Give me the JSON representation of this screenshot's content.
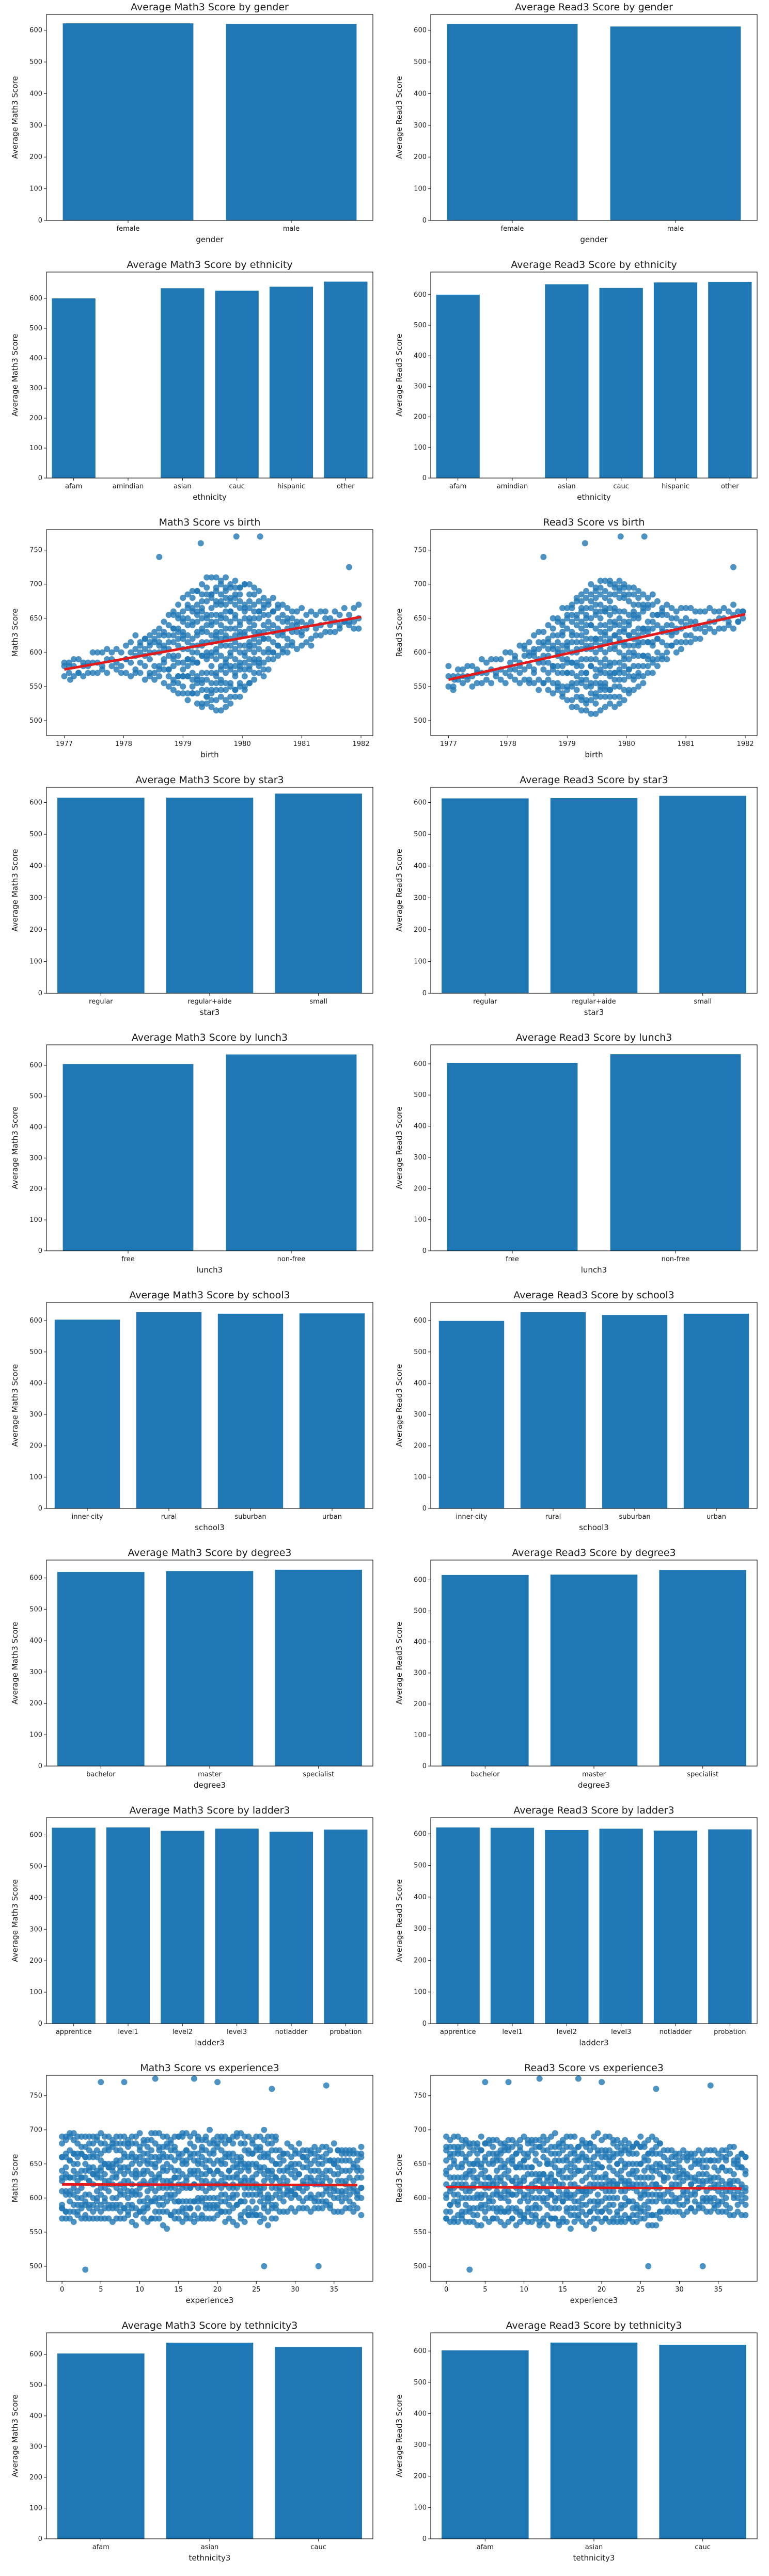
{
  "colors": {
    "bar": "#1f77b4",
    "point": "#1f77b4",
    "fit_line": "#e31a1c",
    "axes": "#1a1a1a"
  },
  "chart_data": [
    {
      "type": "bar",
      "title": "Average Math3 Score by gender",
      "xlabel": "gender",
      "ylabel": "Average Math3 Score",
      "categories": [
        "female",
        "male"
      ],
      "values": [
        622,
        620
      ],
      "ylim": [
        0,
        650
      ],
      "yticks": [
        0,
        100,
        200,
        300,
        400,
        500,
        600
      ],
      "grid": false
    },
    {
      "type": "bar",
      "title": "Average Read3 Score by gender",
      "xlabel": "gender",
      "ylabel": "Average Read3 Score",
      "categories": [
        "female",
        "male"
      ],
      "values": [
        620,
        612
      ],
      "ylim": [
        0,
        650
      ],
      "yticks": [
        0,
        100,
        200,
        300,
        400,
        500,
        600
      ],
      "grid": false
    },
    {
      "type": "bar",
      "title": "Average Math3 Score by ethnicity",
      "xlabel": "ethnicity",
      "ylabel": "Average Math3 Score",
      "categories": [
        "afam",
        "amindian",
        "asian",
        "cauc",
        "hispanic",
        "other"
      ],
      "values": [
        600,
        null,
        634,
        626,
        639,
        656
      ],
      "ylim": [
        0,
        688
      ],
      "yticks": [
        0,
        100,
        200,
        300,
        400,
        500,
        600
      ],
      "grid": false
    },
    {
      "type": "bar",
      "title": "Average Read3 Score by ethnicity",
      "xlabel": "ethnicity",
      "ylabel": "Average Read3 Score",
      "categories": [
        "afam",
        "amindian",
        "asian",
        "cauc",
        "hispanic",
        "other"
      ],
      "values": [
        600,
        null,
        634,
        622,
        640,
        642
      ],
      "ylim": [
        0,
        674
      ],
      "yticks": [
        0,
        100,
        200,
        300,
        400,
        500,
        600
      ],
      "grid": false
    },
    {
      "type": "scatter",
      "title": "Math3 Score vs birth",
      "xlabel": "birth",
      "ylabel": "Math3 Score",
      "xlim": [
        1976.7,
        1982.2
      ],
      "ylim": [
        478,
        780
      ],
      "xticks": [
        1977,
        1978,
        1979,
        1980,
        1981,
        1982
      ],
      "yticks": [
        500,
        550,
        600,
        650,
        700,
        750
      ],
      "regression": {
        "x": [
          1977.0,
          1982.0
        ],
        "y": [
          575,
          652
        ]
      },
      "grid": false
    },
    {
      "type": "scatter",
      "title": "Read3 Score vs birth",
      "xlabel": "birth",
      "ylabel": "Read3 Score",
      "xlim": [
        1976.7,
        1982.2
      ],
      "ylim": [
        478,
        780
      ],
      "xticks": [
        1977,
        1978,
        1979,
        1980,
        1981,
        1982
      ],
      "yticks": [
        500,
        550,
        600,
        650,
        700,
        750
      ],
      "regression": {
        "x": [
          1977.0,
          1982.0
        ],
        "y": [
          560,
          656
        ]
      },
      "grid": false
    },
    {
      "type": "bar",
      "title": "Average Math3 Score by star3",
      "xlabel": "star3",
      "ylabel": "Average Math3 Score",
      "categories": [
        "regular",
        "regular+aide",
        "small"
      ],
      "values": [
        615,
        615,
        628
      ],
      "ylim": [
        0,
        648
      ],
      "yticks": [
        0,
        100,
        200,
        300,
        400,
        500,
        600
      ],
      "grid": false
    },
    {
      "type": "bar",
      "title": "Average Read3 Score by star3",
      "xlabel": "star3",
      "ylabel": "Average Read3 Score",
      "categories": [
        "regular",
        "regular+aide",
        "small"
      ],
      "values": [
        613,
        614,
        621
      ],
      "ylim": [
        0,
        648
      ],
      "yticks": [
        0,
        100,
        200,
        300,
        400,
        500,
        600
      ],
      "grid": false
    },
    {
      "type": "bar",
      "title": "Average Math3 Score by lunch3",
      "xlabel": "lunch3",
      "ylabel": "Average Math3 Score",
      "categories": [
        "free",
        "non-free"
      ],
      "values": [
        604,
        635
      ],
      "ylim": [
        0,
        666
      ],
      "yticks": [
        0,
        100,
        200,
        300,
        400,
        500,
        600
      ],
      "grid": false
    },
    {
      "type": "bar",
      "title": "Average Read3 Score by lunch3",
      "xlabel": "lunch3",
      "ylabel": "Average Read3 Score",
      "categories": [
        "free",
        "non-free"
      ],
      "values": [
        603,
        631
      ],
      "ylim": [
        0,
        661
      ],
      "yticks": [
        0,
        100,
        200,
        300,
        400,
        500,
        600
      ],
      "grid": false
    },
    {
      "type": "bar",
      "title": "Average Math3 Score by school3",
      "xlabel": "school3",
      "ylabel": "Average Math3 Score",
      "categories": [
        "inner-city",
        "rural",
        "suburban",
        "urban"
      ],
      "values": [
        603,
        627,
        622,
        623
      ],
      "ylim": [
        0,
        658
      ],
      "yticks": [
        0,
        100,
        200,
        300,
        400,
        500,
        600
      ],
      "grid": false
    },
    {
      "type": "bar",
      "title": "Average Read3 Score by school3",
      "xlabel": "school3",
      "ylabel": "Average Read3 Score",
      "categories": [
        "inner-city",
        "rural",
        "suburban",
        "urban"
      ],
      "values": [
        599,
        627,
        618,
        622
      ],
      "ylim": [
        0,
        658
      ],
      "yticks": [
        0,
        100,
        200,
        300,
        400,
        500,
        600
      ],
      "grid": false
    },
    {
      "type": "bar",
      "title": "Average Math3 Score by degree3",
      "xlabel": "degree3",
      "ylabel": "Average Math3 Score",
      "categories": [
        "bachelor",
        "master",
        "specialist"
      ],
      "values": [
        619,
        622,
        626
      ],
      "ylim": [
        0,
        657
      ],
      "yticks": [
        0,
        100,
        200,
        300,
        400,
        500,
        600
      ],
      "grid": false
    },
    {
      "type": "bar",
      "title": "Average Read3 Score by degree3",
      "xlabel": "degree3",
      "ylabel": "Average Read3 Score",
      "categories": [
        "bachelor",
        "master",
        "specialist"
      ],
      "values": [
        616,
        617,
        632
      ],
      "ylim": [
        0,
        664
      ],
      "yticks": [
        0,
        100,
        200,
        300,
        400,
        500,
        600
      ],
      "grid": false
    },
    {
      "type": "bar",
      "title": "Average Math3 Score by ladder3",
      "xlabel": "ladder3",
      "ylabel": "Average Math3 Score",
      "categories": [
        "apprentice",
        "level1",
        "level2",
        "level3",
        "notladder",
        "probation"
      ],
      "values": [
        623,
        624,
        613,
        620,
        610,
        617
      ],
      "ylim": [
        0,
        655
      ],
      "yticks": [
        0,
        100,
        200,
        300,
        400,
        500,
        600
      ],
      "grid": false
    },
    {
      "type": "bar",
      "title": "Average Read3 Score by ladder3",
      "xlabel": "ladder3",
      "ylabel": "Average Read3 Score",
      "categories": [
        "apprentice",
        "level1",
        "level2",
        "level3",
        "notladder",
        "probation"
      ],
      "values": [
        620,
        619,
        612,
        616,
        610,
        614
      ],
      "ylim": [
        0,
        651
      ],
      "yticks": [
        0,
        100,
        200,
        300,
        400,
        500,
        600
      ],
      "grid": false
    },
    {
      "type": "scatter",
      "title": "Math3 Score vs experience3",
      "xlabel": "experience3",
      "ylabel": "Math3 Score",
      "xlim": [
        -2,
        40
      ],
      "ylim": [
        478,
        780
      ],
      "xticks": [
        0,
        5,
        10,
        15,
        20,
        25,
        30,
        35
      ],
      "yticks": [
        500,
        550,
        600,
        650,
        700,
        750
      ],
      "regression": {
        "x": [
          0,
          38
        ],
        "y": [
          620,
          619
        ]
      },
      "grid": false
    },
    {
      "type": "scatter",
      "title": "Read3 Score vs experience3",
      "xlabel": "experience3",
      "ylabel": "Read3 Score",
      "xlim": [
        -2,
        40
      ],
      "ylim": [
        478,
        780
      ],
      "xticks": [
        0,
        5,
        10,
        15,
        20,
        25,
        30,
        35
      ],
      "yticks": [
        500,
        550,
        600,
        650,
        700,
        750
      ],
      "regression": {
        "x": [
          0,
          38
        ],
        "y": [
          616,
          614
        ]
      },
      "grid": false
    },
    {
      "type": "bar",
      "title": "Average Math3 Score by tethnicity3",
      "xlabel": "tethnicity3",
      "ylabel": "Average Math3 Score",
      "categories": [
        "afam",
        "asian",
        "cauc"
      ],
      "values": [
        603,
        638,
        624
      ],
      "ylim": [
        0,
        670
      ],
      "yticks": [
        0,
        100,
        200,
        300,
        400,
        500,
        600
      ],
      "grid": false
    },
    {
      "type": "bar",
      "title": "Average Read3 Score by tethnicity3",
      "xlabel": "tethnicity3",
      "ylabel": "Average Read3 Score",
      "categories": [
        "afam",
        "asian",
        "cauc"
      ],
      "values": [
        602,
        627,
        620
      ],
      "ylim": [
        0,
        658
      ],
      "yticks": [
        0,
        100,
        200,
        300,
        400,
        500,
        600
      ],
      "grid": false
    }
  ]
}
